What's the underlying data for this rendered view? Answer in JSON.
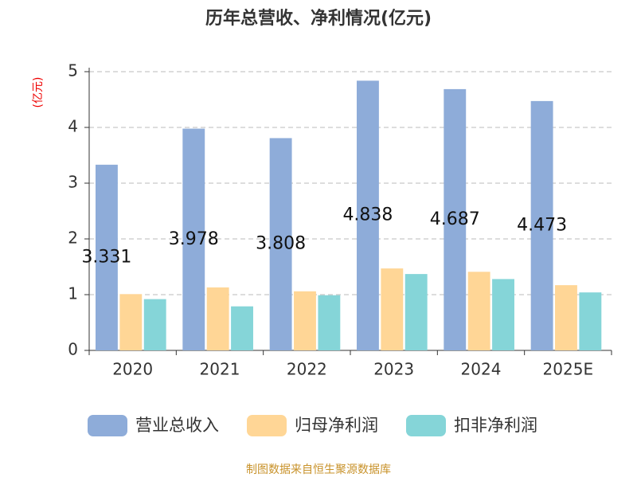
{
  "chart_data": {
    "type": "bar",
    "title": "历年总营收、净利情况(亿元)",
    "y_label": "(亿元)",
    "categories": [
      "2020",
      "2021",
      "2022",
      "2023",
      "2024",
      "2025E"
    ],
    "series": [
      {
        "name": "营业总收入",
        "color": "#8eacd9",
        "values": [
          3.331,
          3.978,
          3.808,
          4.838,
          4.687,
          4.473
        ],
        "show_labels": true
      },
      {
        "name": "归母净利润",
        "color": "#ffd696",
        "values": [
          1.01,
          1.13,
          1.06,
          1.47,
          1.41,
          1.17
        ]
      },
      {
        "name": "扣非净利润",
        "color": "#85d5d8",
        "values": [
          0.92,
          0.79,
          0.99,
          1.37,
          1.28,
          1.04
        ]
      }
    ],
    "ylim": [
      0,
      5
    ],
    "yticks": [
      0,
      1,
      2,
      3,
      4,
      5
    ],
    "grid": true,
    "source": "制图数据来自恒生聚源数据库"
  }
}
